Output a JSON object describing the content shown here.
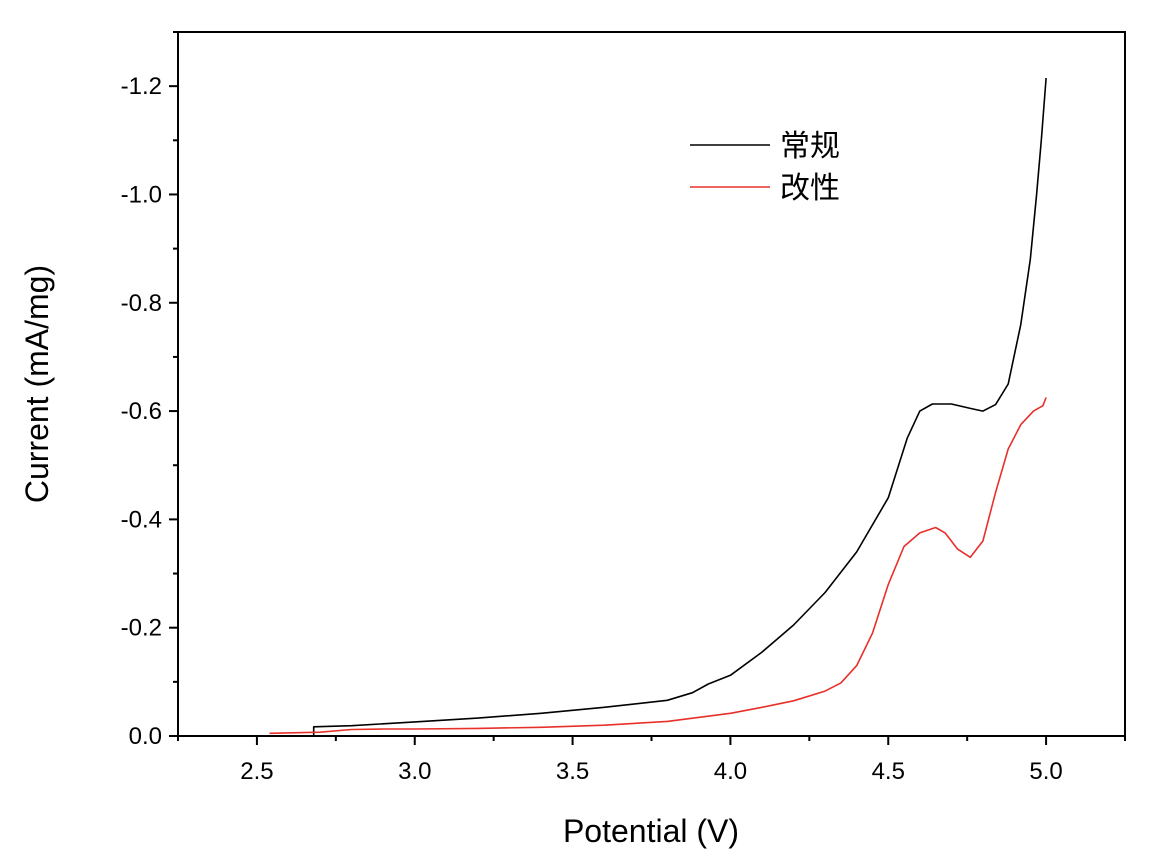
{
  "chart_data": {
    "type": "line",
    "xlabel": "Potential (V)",
    "ylabel": "Current (mA/mg)",
    "xlim": [
      2.25,
      5.25
    ],
    "ylim": [
      0.0,
      -1.3
    ],
    "y_axis_inverted": true,
    "x_ticks": [
      2.5,
      3.0,
      3.5,
      4.0,
      4.5,
      5.0
    ],
    "x_tick_labels": [
      "2.5",
      "3.0",
      "3.5",
      "4.0",
      "4.5",
      "5.0"
    ],
    "y_ticks": [
      0.0,
      -0.2,
      -0.4,
      -0.6,
      -0.8,
      -1.0,
      -1.2
    ],
    "y_tick_labels": [
      "0.0",
      "-0.2",
      "-0.4",
      "-0.6",
      "-0.8",
      "-1.0",
      "-1.2"
    ],
    "grid": false,
    "legend_position": "top-right",
    "series": [
      {
        "name": "常规",
        "color": "#000000",
        "x": [
          2.68,
          2.68,
          2.8,
          3.0,
          3.2,
          3.4,
          3.6,
          3.8,
          3.88,
          3.93,
          4.0,
          4.1,
          4.2,
          4.3,
          4.4,
          4.5,
          4.56,
          4.6,
          4.64,
          4.7,
          4.76,
          4.8,
          4.84,
          4.88,
          4.92,
          4.95,
          4.97,
          4.985,
          5.0
        ],
        "y": [
          -0.0,
          -0.017,
          -0.019,
          -0.026,
          -0.033,
          -0.042,
          -0.053,
          -0.066,
          -0.08,
          -0.096,
          -0.112,
          -0.155,
          -0.205,
          -0.265,
          -0.34,
          -0.44,
          -0.55,
          -0.6,
          -0.613,
          -0.613,
          -0.605,
          -0.6,
          -0.612,
          -0.65,
          -0.76,
          -0.88,
          -1.0,
          -1.1,
          -1.215
        ]
      },
      {
        "name": "改性",
        "color": "#e8302a",
        "x": [
          2.54,
          2.7,
          2.8,
          2.9,
          3.0,
          3.2,
          3.4,
          3.6,
          3.8,
          4.0,
          4.1,
          4.2,
          4.3,
          4.35,
          4.4,
          4.45,
          4.5,
          4.55,
          4.6,
          4.65,
          4.68,
          4.72,
          4.76,
          4.8,
          4.84,
          4.88,
          4.92,
          4.96,
          4.99,
          5.0
        ],
        "y": [
          -0.005,
          -0.007,
          -0.012,
          -0.013,
          -0.013,
          -0.014,
          -0.016,
          -0.02,
          -0.027,
          -0.042,
          -0.053,
          -0.065,
          -0.083,
          -0.098,
          -0.13,
          -0.19,
          -0.28,
          -0.35,
          -0.375,
          -0.385,
          -0.375,
          -0.345,
          -0.33,
          -0.36,
          -0.45,
          -0.53,
          -0.575,
          -0.6,
          -0.61,
          -0.625
        ]
      }
    ]
  }
}
